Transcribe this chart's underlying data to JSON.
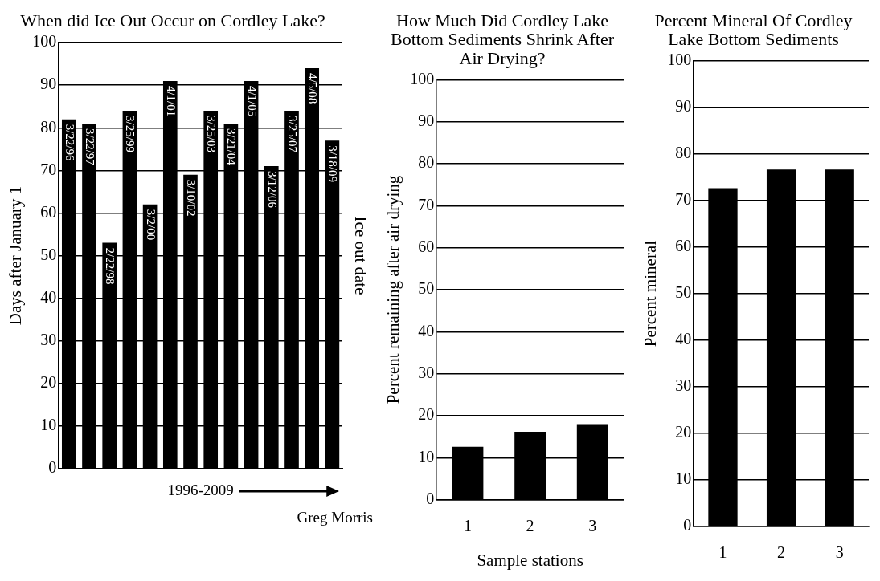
{
  "chart_data": [
    {
      "type": "bar",
      "title": "When did Ice Out Occur on Cordley Lake?",
      "ylabel": "Days after January 1",
      "y2label": "Ice out date",
      "categories": [
        null,
        null,
        null,
        null,
        null,
        null,
        null,
        null,
        null,
        null,
        null,
        null,
        null,
        null
      ],
      "values": [
        82,
        81,
        53,
        84,
        62,
        91,
        69,
        84,
        81,
        91,
        71,
        84,
        94,
        77
      ],
      "value_labels": [
        "3/22/96",
        "3/22/97",
        "2/22/98",
        "3/25/99",
        "3/2/00",
        "4/1/01",
        "3/10/02",
        "3/25/03",
        "3/21/04",
        "4/1/05",
        "3/12/06",
        "3/25/07",
        "4/5/08",
        "3/18/09"
      ],
      "color": "#000000",
      "ylim": [
        0,
        100
      ],
      "yticks": [
        0,
        10,
        20,
        30,
        40,
        50,
        60,
        70,
        80,
        90,
        100
      ],
      "grid": "y",
      "annotations": [
        "1996-2009",
        "Greg Morris"
      ]
    },
    {
      "type": "bar",
      "title": "How Much Did Cordley Lake Bottom Sediments Shrink After Air Drying?",
      "xlabel": "Sample stations",
      "ylabel": "Percent remaining after air drying",
      "categories": [
        "1",
        "2",
        "3"
      ],
      "values": [
        12.6,
        16.2,
        18.0
      ],
      "color": "#000000",
      "ylim": [
        0,
        100
      ],
      "yticks": [
        0,
        10,
        20,
        30,
        40,
        50,
        60,
        70,
        80,
        90,
        100
      ],
      "grid": "y"
    },
    {
      "type": "bar",
      "title": "Percent Mineral Of Cordley Lake Bottom Sediments",
      "ylabel": "Percent mineral",
      "categories": [
        "1",
        "2",
        "3"
      ],
      "values": [
        72.7,
        76.7,
        76.7
      ],
      "color": "#000000",
      "ylim": [
        0,
        100
      ],
      "yticks": [
        0,
        10,
        20,
        30,
        40,
        50,
        60,
        70,
        80,
        90,
        100
      ],
      "grid": "y"
    }
  ]
}
